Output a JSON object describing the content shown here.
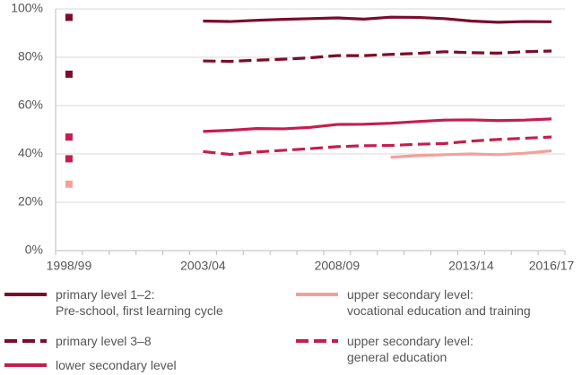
{
  "chart_data": {
    "type": "line",
    "categories": [
      "1998/99",
      null,
      null,
      null,
      null,
      "2003/04",
      null,
      null,
      null,
      null,
      "2008/09",
      null,
      null,
      null,
      null,
      "2013/14",
      null,
      null,
      "2016/17"
    ],
    "series": [
      {
        "name": "primary level 1–2:\nPre-school, first learning cycle",
        "color": "#7b0c2c",
        "dash": false,
        "values": [
          96.5,
          null,
          null,
          null,
          null,
          95,
          94.8,
          95.3,
          95.7,
          96,
          96.3,
          95.8,
          96.6,
          96.5,
          96,
          95,
          94.5,
          94.8,
          94.7
        ]
      },
      {
        "name": "primary level 3–8",
        "color": "#7b0c2c",
        "dash": true,
        "values": [
          73,
          null,
          null,
          null,
          null,
          78.5,
          78.3,
          78.8,
          79.2,
          79.8,
          80.7,
          80.7,
          81.2,
          81.6,
          82.3,
          81.9,
          81.7,
          82.3,
          82.6
        ]
      },
      {
        "name": "lower secondary level",
        "color": "#c41e4e",
        "dash": false,
        "values": [
          47,
          null,
          null,
          null,
          null,
          49.3,
          49.8,
          50.5,
          50.4,
          51,
          52.2,
          52.3,
          52.7,
          53.4,
          54,
          54.1,
          53.8,
          54,
          54.5
        ]
      },
      {
        "name": "upper secondary level:\nvocational education and training",
        "color": "#f4a09a",
        "dash": false,
        "values": [
          27.5,
          null,
          null,
          null,
          null,
          null,
          null,
          null,
          null,
          null,
          null,
          null,
          38.6,
          39.3,
          39.7,
          40,
          39.7,
          40.3,
          41.3
        ]
      },
      {
        "name": "upper secondary level:\ngeneral education",
        "color": "#c41e4e",
        "dash": true,
        "values": [
          38,
          null,
          null,
          null,
          null,
          41,
          39.8,
          40.8,
          41.5,
          42.2,
          43,
          43.4,
          43.5,
          44,
          44.3,
          45.3,
          46,
          46.5,
          47
        ]
      }
    ],
    "ylim": [
      0,
      100
    ],
    "yticks": [
      {
        "value": 0,
        "label": "0%"
      },
      {
        "value": 20,
        "label": "20%"
      },
      {
        "value": 40,
        "label": "40%"
      },
      {
        "value": 60,
        "label": "60%"
      },
      {
        "value": 80,
        "label": "80%"
      },
      {
        "value": 100,
        "label": "100%"
      }
    ],
    "grid": true
  }
}
